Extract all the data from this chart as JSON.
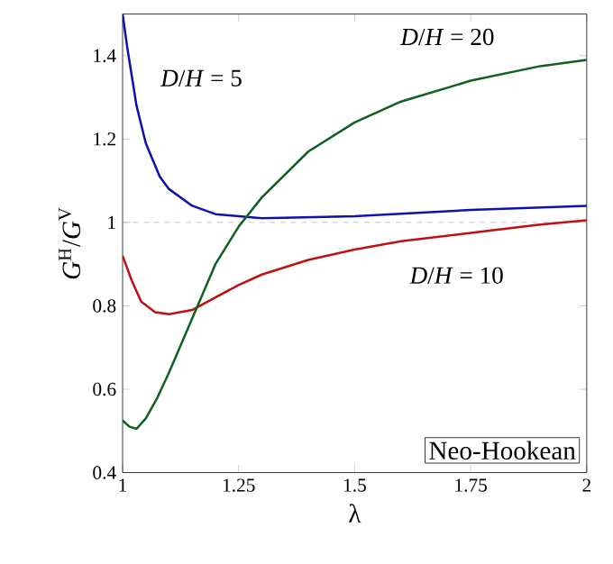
{
  "chart_data": {
    "type": "line",
    "xlabel": "λ",
    "ylabel": "*G*$^{H}$/*G*$^{V}$",
    "xlim": [
      1,
      2
    ],
    "ylim": [
      0.4,
      1.5
    ],
    "xticks": [
      1,
      1.25,
      1.5,
      1.75,
      2
    ],
    "yticks": [
      0.4,
      0.6,
      0.8,
      1,
      1.2,
      1.4
    ],
    "grid": false,
    "marker": "none",
    "line_style": "solid",
    "series": [
      {
        "name": "*D*/*H* = 5",
        "color": "#1010b0",
        "x": [
          1,
          1.01,
          1.02,
          1.03,
          1.05,
          1.08,
          1.1,
          1.15,
          1.2,
          1.3,
          1.5,
          1.75,
          2
        ],
        "values": [
          1.5,
          1.42,
          1.35,
          1.28,
          1.19,
          1.11,
          1.08,
          1.04,
          1.02,
          1.01,
          1.015,
          1.03,
          1.04
        ]
      },
      {
        "name": "*D*/*H* = 10",
        "color": "#c01010",
        "x": [
          1,
          1.02,
          1.04,
          1.07,
          1.1,
          1.15,
          1.2,
          1.25,
          1.3,
          1.4,
          1.5,
          1.6,
          1.75,
          1.9,
          2
        ],
        "values": [
          0.92,
          0.86,
          0.81,
          0.785,
          0.78,
          0.79,
          0.82,
          0.85,
          0.875,
          0.91,
          0.935,
          0.955,
          0.975,
          0.995,
          1.005
        ]
      },
      {
        "name": "*D*/*H* = 20",
        "color": "#106020",
        "x": [
          1,
          1.015,
          1.03,
          1.05,
          1.075,
          1.1,
          1.15,
          1.2,
          1.25,
          1.3,
          1.4,
          1.5,
          1.6,
          1.75,
          1.9,
          2
        ],
        "values": [
          0.525,
          0.51,
          0.505,
          0.53,
          0.58,
          0.64,
          0.77,
          0.9,
          0.99,
          1.06,
          1.17,
          1.24,
          1.29,
          1.34,
          1.375,
          1.39
        ]
      }
    ],
    "ref_lines": [
      {
        "axis": "y",
        "value": 1,
        "color": "#aaaaaa",
        "line_style": "dashed"
      }
    ],
    "annotations": [
      "Neo-Hookean"
    ]
  }
}
